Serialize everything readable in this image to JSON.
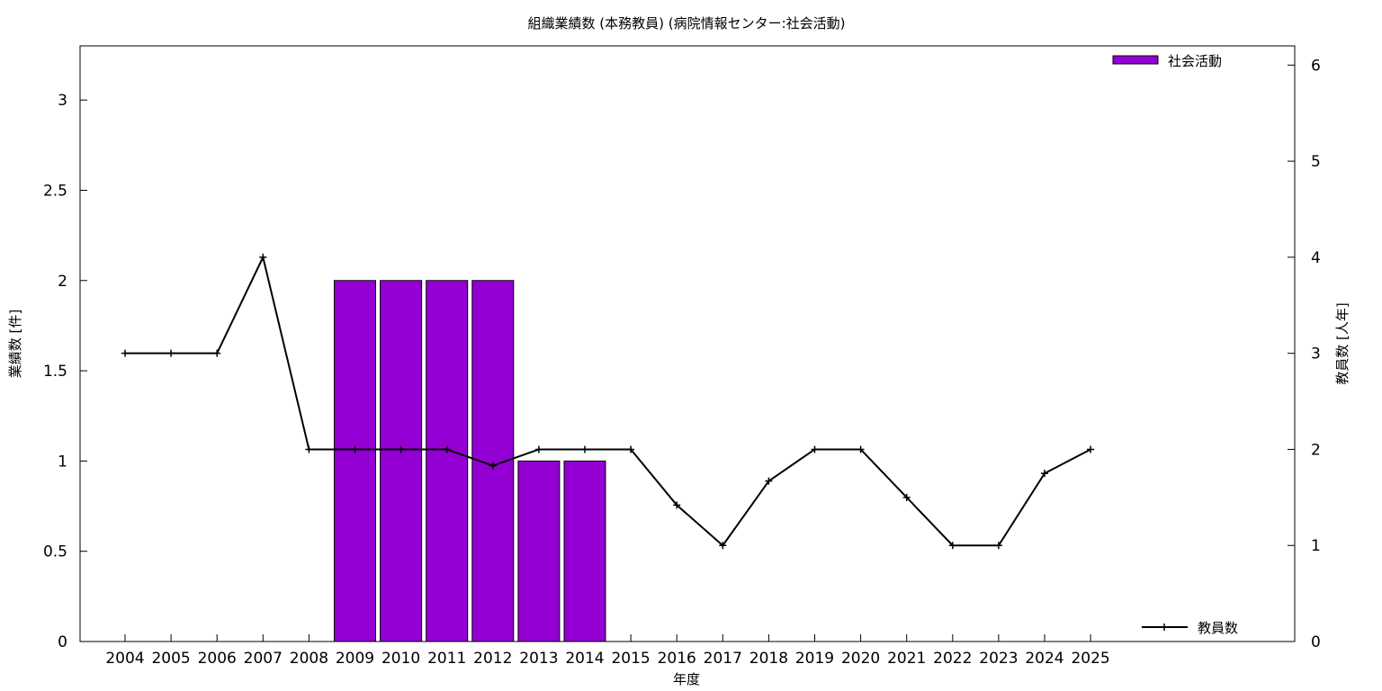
{
  "chart_data": {
    "type": "bar",
    "title": "組織業績数 (本務教員) (病院情報センター:社会活動)",
    "xlabel": "年度",
    "ylabel": "業績数 [件]",
    "y2label": "教員数 [人年]",
    "categories": [
      "2004",
      "2005",
      "2006",
      "2007",
      "2008",
      "2009",
      "2010",
      "2011",
      "2012",
      "2013",
      "2014",
      "2015",
      "2016",
      "2017",
      "2018",
      "2019",
      "2020",
      "2021",
      "2022",
      "2023",
      "2024",
      "2025"
    ],
    "ylim": [
      0,
      3.3
    ],
    "y2lim": [
      0,
      6.2
    ],
    "yticks": [
      "0",
      "0.5",
      "1",
      "1.5",
      "2",
      "2.5",
      "3"
    ],
    "y2ticks": [
      "0",
      "1",
      "2",
      "3",
      "4",
      "5",
      "6"
    ],
    "grid": false,
    "series": [
      {
        "name": "社会活動",
        "type": "bar",
        "axis": "left",
        "color": "#9400d3",
        "values": [
          0,
          0,
          0,
          0,
          0,
          2,
          2,
          2,
          2,
          1,
          1,
          0,
          0,
          0,
          0,
          0,
          0,
          0,
          0,
          0,
          0,
          0
        ]
      },
      {
        "name": "教員数",
        "type": "line",
        "axis": "right",
        "color": "#000000",
        "values": [
          3,
          3,
          3,
          4,
          2,
          2,
          2,
          2,
          1.83,
          2,
          2,
          2,
          1.42,
          1,
          1.67,
          2,
          2,
          1.5,
          1,
          1,
          1.75,
          2
        ]
      }
    ],
    "legend": [
      "top-right",
      "bottom-right"
    ]
  }
}
